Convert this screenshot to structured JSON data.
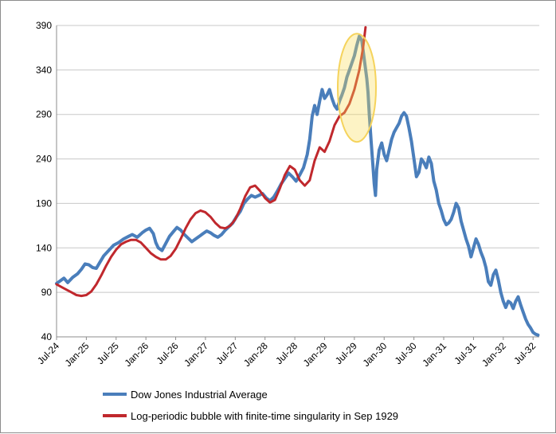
{
  "chart_data": {
    "type": "line",
    "title": "",
    "xlabel": "",
    "ylabel": "",
    "ylim": [
      40,
      390
    ],
    "y_ticks": [
      40,
      90,
      140,
      190,
      240,
      290,
      340,
      390
    ],
    "x_tick_labels": [
      "Jul-24",
      "Jan-25",
      "Jul-25",
      "Jan-26",
      "Jul-26",
      "Jan-27",
      "Jul-27",
      "Jan-28",
      "Jul-28",
      "Jan-29",
      "Jul-29",
      "Jan-30",
      "Jul-30",
      "Jan-31",
      "Jul-31",
      "Jan-32",
      "Jul-32"
    ],
    "grid": "horizontal",
    "legend_position": "bottom",
    "highlight": {
      "shape": "ellipse",
      "color": "#f5d35c",
      "around": "Jul-29 to Oct-29"
    },
    "series": [
      {
        "name": "Dow Jones Industrial Average",
        "color": "#4a7ebb",
        "points": [
          [
            0.0,
            100
          ],
          [
            0.3,
            103
          ],
          [
            0.6,
            106
          ],
          [
            0.9,
            101
          ],
          [
            1.3,
            107
          ],
          [
            1.7,
            111
          ],
          [
            2.0,
            116
          ],
          [
            2.3,
            122
          ],
          [
            2.6,
            121
          ],
          [
            2.9,
            118
          ],
          [
            3.2,
            117
          ],
          [
            3.5,
            124
          ],
          [
            3.8,
            131
          ],
          [
            4.2,
            137
          ],
          [
            4.6,
            143
          ],
          [
            5.0,
            146
          ],
          [
            5.4,
            150
          ],
          [
            5.8,
            153
          ],
          [
            6.1,
            155
          ],
          [
            6.5,
            152
          ],
          [
            6.9,
            157
          ],
          [
            7.2,
            160
          ],
          [
            7.5,
            162
          ],
          [
            7.8,
            156
          ],
          [
            8.0,
            146
          ],
          [
            8.2,
            140
          ],
          [
            8.5,
            137
          ],
          [
            8.8,
            145
          ],
          [
            9.1,
            153
          ],
          [
            9.4,
            158
          ],
          [
            9.7,
            163
          ],
          [
            10.0,
            160
          ],
          [
            10.3,
            155
          ],
          [
            10.6,
            151
          ],
          [
            10.9,
            147
          ],
          [
            11.2,
            150
          ],
          [
            11.5,
            153
          ],
          [
            11.8,
            156
          ],
          [
            12.1,
            159
          ],
          [
            12.4,
            157
          ],
          [
            12.7,
            154
          ],
          [
            13.0,
            152
          ],
          [
            13.3,
            155
          ],
          [
            13.6,
            160
          ],
          [
            13.9,
            164
          ],
          [
            14.2,
            168
          ],
          [
            14.5,
            175
          ],
          [
            14.8,
            181
          ],
          [
            15.1,
            190
          ],
          [
            15.4,
            195
          ],
          [
            15.7,
            199
          ],
          [
            16.0,
            197
          ],
          [
            16.3,
            199
          ],
          [
            16.6,
            201
          ],
          [
            16.9,
            196
          ],
          [
            17.2,
            193
          ],
          [
            17.5,
            197
          ],
          [
            17.8,
            204
          ],
          [
            18.1,
            212
          ],
          [
            18.4,
            218
          ],
          [
            18.7,
            224
          ],
          [
            19.0,
            220
          ],
          [
            19.3,
            215
          ],
          [
            19.6,
            222
          ],
          [
            19.9,
            230
          ],
          [
            20.2,
            245
          ],
          [
            20.4,
            262
          ],
          [
            20.6,
            288
          ],
          [
            20.8,
            300
          ],
          [
            21.0,
            290
          ],
          [
            21.2,
            305
          ],
          [
            21.4,
            318
          ],
          [
            21.6,
            308
          ],
          [
            21.8,
            312
          ],
          [
            22.0,
            318
          ],
          [
            22.2,
            308
          ],
          [
            22.4,
            300
          ],
          [
            22.6,
            296
          ],
          [
            22.8,
            305
          ],
          [
            23.0,
            312
          ],
          [
            23.2,
            320
          ],
          [
            23.4,
            332
          ],
          [
            23.6,
            340
          ],
          [
            23.8,
            348
          ],
          [
            24.0,
            356
          ],
          [
            24.2,
            368
          ],
          [
            24.4,
            378
          ],
          [
            24.6,
            373
          ],
          [
            24.8,
            352
          ],
          [
            25.0,
            330
          ],
          [
            25.1,
            315
          ],
          [
            25.2,
            290
          ],
          [
            25.35,
            260
          ],
          [
            25.5,
            232
          ],
          [
            25.6,
            212
          ],
          [
            25.7,
            199
          ],
          [
            25.8,
            228
          ],
          [
            26.0,
            250
          ],
          [
            26.2,
            258
          ],
          [
            26.4,
            245
          ],
          [
            26.6,
            238
          ],
          [
            26.8,
            250
          ],
          [
            27.0,
            262
          ],
          [
            27.2,
            270
          ],
          [
            27.4,
            275
          ],
          [
            27.6,
            280
          ],
          [
            27.8,
            288
          ],
          [
            28.0,
            292
          ],
          [
            28.2,
            288
          ],
          [
            28.4,
            275
          ],
          [
            28.6,
            260
          ],
          [
            28.8,
            240
          ],
          [
            29.0,
            220
          ],
          [
            29.2,
            225
          ],
          [
            29.4,
            240
          ],
          [
            29.6,
            236
          ],
          [
            29.8,
            230
          ],
          [
            30.0,
            242
          ],
          [
            30.2,
            235
          ],
          [
            30.4,
            215
          ],
          [
            30.6,
            205
          ],
          [
            30.8,
            190
          ],
          [
            31.0,
            182
          ],
          [
            31.2,
            172
          ],
          [
            31.4,
            166
          ],
          [
            31.6,
            168
          ],
          [
            31.8,
            172
          ],
          [
            32.0,
            180
          ],
          [
            32.2,
            190
          ],
          [
            32.4,
            185
          ],
          [
            32.6,
            170
          ],
          [
            32.8,
            160
          ],
          [
            33.0,
            150
          ],
          [
            33.2,
            142
          ],
          [
            33.4,
            130
          ],
          [
            33.6,
            140
          ],
          [
            33.8,
            150
          ],
          [
            34.0,
            144
          ],
          [
            34.2,
            135
          ],
          [
            34.4,
            128
          ],
          [
            34.6,
            118
          ],
          [
            34.8,
            102
          ],
          [
            35.0,
            98
          ],
          [
            35.2,
            110
          ],
          [
            35.4,
            115
          ],
          [
            35.6,
            104
          ],
          [
            35.8,
            90
          ],
          [
            36.0,
            80
          ],
          [
            36.2,
            73
          ],
          [
            36.4,
            80
          ],
          [
            36.6,
            78
          ],
          [
            36.8,
            72
          ],
          [
            37.0,
            80
          ],
          [
            37.2,
            85
          ],
          [
            37.4,
            76
          ],
          [
            37.6,
            68
          ],
          [
            37.8,
            60
          ],
          [
            38.0,
            54
          ],
          [
            38.2,
            50
          ],
          [
            38.4,
            45
          ],
          [
            38.6,
            43
          ],
          [
            38.8,
            42
          ]
        ]
      },
      {
        "name": "Log-periodic bubble with finite-time singularity in Sep 1929",
        "color": "#c0282d",
        "points": [
          [
            0.0,
            99
          ],
          [
            0.4,
            96
          ],
          [
            0.8,
            93
          ],
          [
            1.2,
            90
          ],
          [
            1.6,
            87
          ],
          [
            2.0,
            86
          ],
          [
            2.4,
            87
          ],
          [
            2.8,
            91
          ],
          [
            3.2,
            99
          ],
          [
            3.6,
            109
          ],
          [
            4.0,
            120
          ],
          [
            4.4,
            130
          ],
          [
            4.8,
            138
          ],
          [
            5.2,
            144
          ],
          [
            5.6,
            147
          ],
          [
            6.0,
            149
          ],
          [
            6.4,
            149
          ],
          [
            6.8,
            146
          ],
          [
            7.2,
            140
          ],
          [
            7.6,
            134
          ],
          [
            8.0,
            130
          ],
          [
            8.4,
            127
          ],
          [
            8.8,
            127
          ],
          [
            9.2,
            131
          ],
          [
            9.6,
            139
          ],
          [
            10.0,
            150
          ],
          [
            10.4,
            162
          ],
          [
            10.8,
            172
          ],
          [
            11.2,
            179
          ],
          [
            11.6,
            182
          ],
          [
            12.0,
            180
          ],
          [
            12.4,
            175
          ],
          [
            12.8,
            168
          ],
          [
            13.2,
            163
          ],
          [
            13.6,
            162
          ],
          [
            14.0,
            165
          ],
          [
            14.4,
            172
          ],
          [
            14.8,
            184
          ],
          [
            15.2,
            198
          ],
          [
            15.6,
            208
          ],
          [
            16.0,
            210
          ],
          [
            16.4,
            204
          ],
          [
            16.8,
            196
          ],
          [
            17.2,
            191
          ],
          [
            17.6,
            194
          ],
          [
            18.0,
            207
          ],
          [
            18.4,
            222
          ],
          [
            18.8,
            232
          ],
          [
            19.2,
            228
          ],
          [
            19.6,
            216
          ],
          [
            20.0,
            210
          ],
          [
            20.4,
            216
          ],
          [
            20.8,
            238
          ],
          [
            21.2,
            253
          ],
          [
            21.6,
            248
          ],
          [
            22.0,
            260
          ],
          [
            22.4,
            278
          ],
          [
            22.8,
            288
          ],
          [
            23.2,
            292
          ],
          [
            23.6,
            302
          ],
          [
            24.0,
            318
          ],
          [
            24.4,
            340
          ],
          [
            24.7,
            365
          ],
          [
            24.9,
            388
          ]
        ]
      }
    ]
  }
}
